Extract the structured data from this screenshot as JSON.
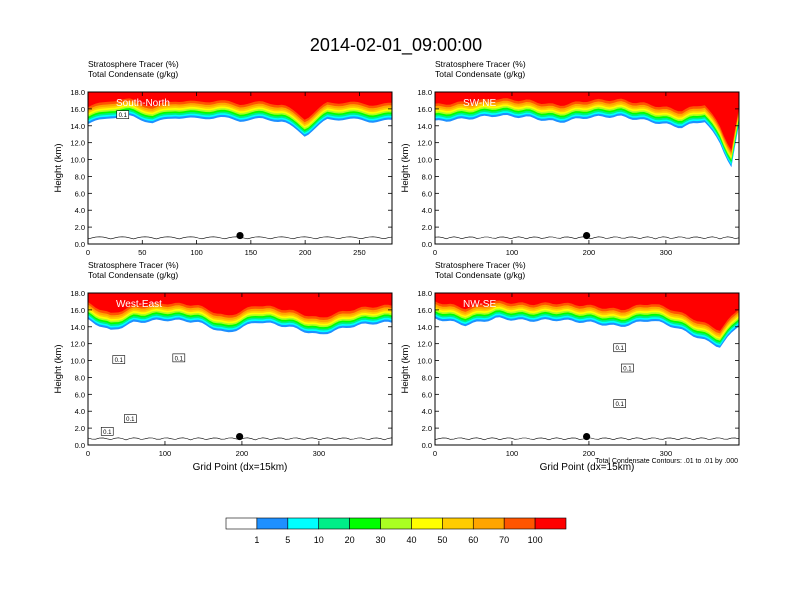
{
  "figure_title": "2014-02-01_09:00:00",
  "colors": {
    "levels": [
      "#ffffff",
      "#1e90ff",
      "#00ffff",
      "#00ee88",
      "#00ff00",
      "#aaff22",
      "#ffff00",
      "#ffcc00",
      "#ffa500",
      "#ff5500",
      "#ff0000"
    ],
    "contour": "#000000",
    "marker": "#000000"
  },
  "colorbar": {
    "labels": [
      "1",
      "5",
      "10",
      "20",
      "30",
      "40",
      "50",
      "60",
      "70",
      "100"
    ]
  },
  "footnote": "Total Condensate Contours: .01 to .01 by .000",
  "chart_data": [
    {
      "type": "heatmap",
      "subtitle_fill": "Stratosphere Tracer   (%)",
      "subtitle_contour": "Total Condensate   (g/kg)",
      "inset_label": "South-North",
      "ylabel": "Height (km)",
      "xlabel": "",
      "xlim": [
        0,
        280
      ],
      "ylim": [
        0,
        18
      ],
      "xticks": [
        0,
        50,
        100,
        150,
        200,
        250
      ],
      "yticks": [
        "0.0",
        "2.0",
        "4.0",
        "6.0",
        "8.0",
        "10.0",
        "12.0",
        "14.0",
        "16.0",
        "18.0"
      ],
      "marker": {
        "x": 140,
        "y": 1.0
      },
      "contour_labels": [
        {
          "text": "0.1",
          "x": 32,
          "y": 15.2
        }
      ],
      "tropopause_km": [
        [
          0,
          14.2
        ],
        [
          20,
          15.0
        ],
        [
          40,
          15.1
        ],
        [
          60,
          14.3
        ],
        [
          80,
          15.0
        ],
        [
          100,
          14.8
        ],
        [
          120,
          15.0
        ],
        [
          140,
          14.6
        ],
        [
          160,
          14.8
        ],
        [
          180,
          14.5
        ],
        [
          200,
          12.8
        ],
        [
          220,
          14.7
        ],
        [
          240,
          14.8
        ],
        [
          260,
          14.5
        ],
        [
          280,
          14.6
        ]
      ]
    },
    {
      "type": "heatmap",
      "subtitle_fill": "Stratosphere Tracer   (%)",
      "subtitle_contour": "Total Condensate   (g/kg)",
      "inset_label": "SW-NE",
      "ylabel": "Height (km)",
      "xlabel": "",
      "xlim": [
        0,
        395
      ],
      "ylim": [
        0,
        18
      ],
      "xticks": [
        0,
        100,
        200,
        300
      ],
      "yticks": [
        "0.0",
        "2.0",
        "4.0",
        "6.0",
        "8.0",
        "10.0",
        "12.0",
        "14.0",
        "16.0",
        "18.0"
      ],
      "marker": {
        "x": 197,
        "y": 1.0
      },
      "contour_labels": [],
      "tropopause_km": [
        [
          0,
          14.5
        ],
        [
          40,
          14.8
        ],
        [
          80,
          15.2
        ],
        [
          120,
          15.0
        ],
        [
          160,
          14.4
        ],
        [
          200,
          15.0
        ],
        [
          240,
          15.1
        ],
        [
          280,
          14.5
        ],
        [
          320,
          13.8
        ],
        [
          350,
          14.6
        ],
        [
          370,
          12.0
        ],
        [
          385,
          9.0
        ],
        [
          395,
          14.0
        ]
      ]
    },
    {
      "type": "heatmap",
      "subtitle_fill": "Stratosphere Tracer   (%)",
      "subtitle_contour": "Total Condensate   (g/kg)",
      "inset_label": "West-East",
      "ylabel": "Height (km)",
      "xlabel": "Grid Point (dx=15km)",
      "xlim": [
        0,
        395
      ],
      "ylim": [
        0,
        18
      ],
      "xticks": [
        0,
        100,
        200,
        300
      ],
      "yticks": [
        "0.0",
        "2.0",
        "4.0",
        "6.0",
        "8.0",
        "10.0",
        "12.0",
        "14.0",
        "16.0",
        "18.0"
      ],
      "marker": {
        "x": 197,
        "y": 1.0
      },
      "contour_labels": [
        {
          "text": "0.1",
          "x": 40,
          "y": 10.0
        },
        {
          "text": "0.1",
          "x": 118,
          "y": 10.2
        },
        {
          "text": "0.1",
          "x": 55,
          "y": 3.0
        },
        {
          "text": "0.1",
          "x": 25,
          "y": 1.5
        }
      ],
      "tropopause_km": [
        [
          0,
          14.8
        ],
        [
          30,
          13.5
        ],
        [
          60,
          14.5
        ],
        [
          100,
          14.8
        ],
        [
          140,
          14.6
        ],
        [
          180,
          13.2
        ],
        [
          220,
          14.6
        ],
        [
          260,
          14.0
        ],
        [
          300,
          13.0
        ],
        [
          340,
          14.0
        ],
        [
          370,
          14.4
        ],
        [
          395,
          14.5
        ]
      ]
    },
    {
      "type": "heatmap",
      "subtitle_fill": "Stratosphere Tracer   (%)",
      "subtitle_contour": "Total Condensate   (g/kg)",
      "inset_label": "NW-SE",
      "ylabel": "Height (km)",
      "xlabel": "Grid Point (dx=15km)",
      "xlim": [
        0,
        395
      ],
      "ylim": [
        0,
        18
      ],
      "xticks": [
        0,
        100,
        200,
        300
      ],
      "yticks": [
        "0.0",
        "2.0",
        "4.0",
        "6.0",
        "8.0",
        "10.0",
        "12.0",
        "14.0",
        "16.0",
        "18.0"
      ],
      "marker": {
        "x": 197,
        "y": 1.0
      },
      "contour_labels": [
        {
          "text": "0.1",
          "x": 240,
          "y": 11.4
        },
        {
          "text": "0.1",
          "x": 250,
          "y": 9.0
        },
        {
          "text": "0.1",
          "x": 240,
          "y": 4.8
        }
      ],
      "tropopause_km": [
        [
          0,
          15.0
        ],
        [
          40,
          14.2
        ],
        [
          80,
          15.0
        ],
        [
          120,
          14.7
        ],
        [
          160,
          14.8
        ],
        [
          200,
          14.5
        ],
        [
          240,
          14.0
        ],
        [
          280,
          14.8
        ],
        [
          310,
          14.0
        ],
        [
          340,
          12.8
        ],
        [
          370,
          11.6
        ],
        [
          395,
          14.2
        ]
      ]
    }
  ]
}
